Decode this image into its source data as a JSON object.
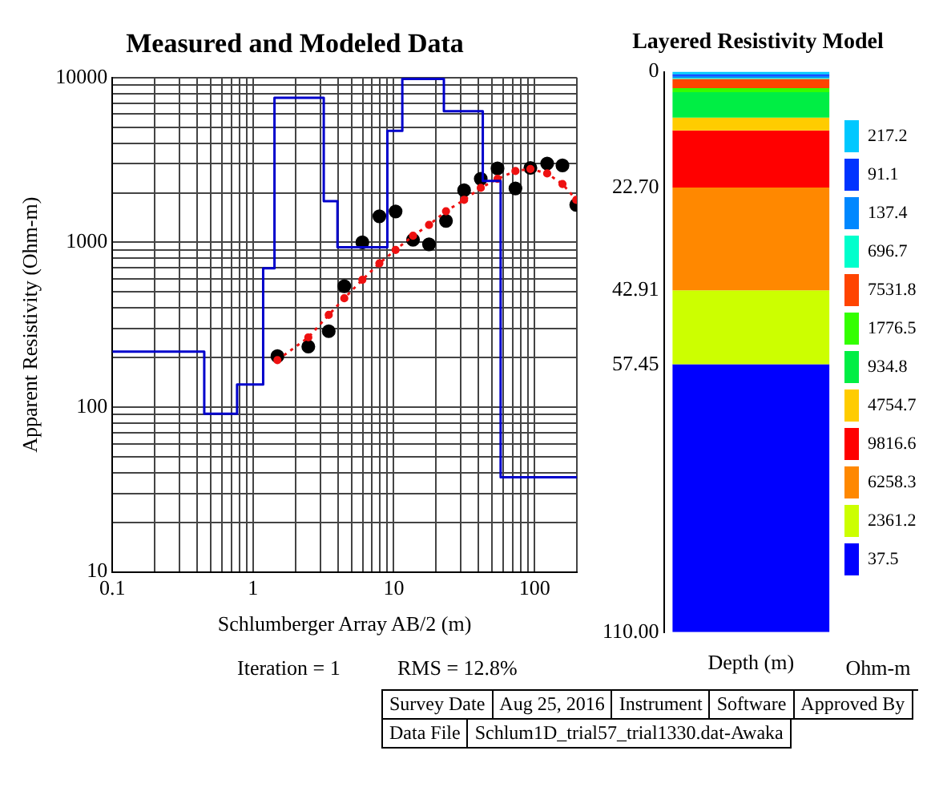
{
  "chart_data": [
    {
      "type": "scatter",
      "title": "Measured and Modeled Data",
      "xlabel": "Schlumberger Array AB/2 (m)",
      "ylabel": "Apparent Resistivity (Ohm-m)",
      "log": "xy",
      "grid": true,
      "xlim": [
        0.1,
        200
      ],
      "ylim": [
        10,
        10000
      ],
      "xticks": [
        {
          "value": 0.1,
          "label": "0.1"
        },
        {
          "value": 0.2,
          "label": null
        },
        {
          "value": 0.3,
          "label": null
        },
        {
          "value": 0.4,
          "label": null
        },
        {
          "value": 0.5,
          "label": null
        },
        {
          "value": 0.6,
          "label": null
        },
        {
          "value": 0.7,
          "label": null
        },
        {
          "value": 0.8,
          "label": null
        },
        {
          "value": 0.9,
          "label": null
        },
        1,
        {
          "value": 2,
          "label": null
        },
        {
          "value": 3,
          "label": null
        },
        {
          "value": 4,
          "label": null
        },
        {
          "value": 5,
          "label": null
        },
        {
          "value": 6,
          "label": null
        },
        {
          "value": 7,
          "label": null
        },
        {
          "value": 8,
          "label": null
        },
        {
          "value": 9,
          "label": null
        },
        10,
        {
          "value": 20,
          "label": null
        },
        {
          "value": 30,
          "label": null
        },
        {
          "value": 40,
          "label": null
        },
        {
          "value": 50,
          "label": null
        },
        {
          "value": 60,
          "label": null
        },
        {
          "value": 70,
          "label": null
        },
        {
          "value": 80,
          "label": null
        },
        {
          "value": 90,
          "label": null
        },
        100,
        {
          "value": 200,
          "label": null
        }
      ],
      "yticks": [
        10,
        {
          "value": 20,
          "label": null
        },
        {
          "value": 30,
          "label": null
        },
        {
          "value": 40,
          "label": null
        },
        {
          "value": 50,
          "label": null
        },
        {
          "value": 60,
          "label": null
        },
        {
          "value": 70,
          "label": null
        },
        {
          "value": 80,
          "label": null
        },
        {
          "value": 90,
          "label": null
        },
        100,
        {
          "value": 200,
          "label": null
        },
        {
          "value": 300,
          "label": null
        },
        {
          "value": 400,
          "label": null
        },
        {
          "value": 500,
          "label": null
        },
        {
          "value": 600,
          "label": null
        },
        {
          "value": 700,
          "label": null
        },
        {
          "value": 800,
          "label": null
        },
        {
          "value": 900,
          "label": null
        },
        1000,
        {
          "value": 2000,
          "label": null
        },
        {
          "value": 3000,
          "label": null
        },
        {
          "value": 4000,
          "label": null
        },
        {
          "value": 5000,
          "label": null
        },
        {
          "value": 6000,
          "label": null
        },
        {
          "value": 7000,
          "label": null
        },
        {
          "value": 8000,
          "label": null
        },
        {
          "value": 9000,
          "label": null
        },
        10000
      ],
      "series": [
        {
          "type": "step",
          "color": "#0000cc",
          "marker": "none",
          "x": [
            0.1,
            0.45,
            0.77,
            1.18,
            1.42,
            3.18,
            3.98,
            9.0,
            11.5,
            22.7,
            42.91,
            57.45,
            200
          ],
          "values": [
            217.2,
            91.1,
            137.4,
            696.7,
            7531.8,
            1776.5,
            934.8,
            4754.7,
            9816.6,
            6258.3,
            2361.2,
            37.5,
            37.5
          ]
        },
        {
          "type": "line",
          "color": "#ee1111",
          "marker": "circle",
          "line_style": "dotted",
          "x": [
            1.49,
            2.47,
            3.45,
            4.45,
            5.98,
            7.9,
            10.3,
            13.7,
            17.8,
            23.5,
            31.6,
            41.5,
            54.6,
            73.2,
            93.5,
            123,
            158,
            198
          ],
          "values": [
            193,
            265,
            363,
            458,
            593,
            746,
            900,
            1096,
            1277,
            1545,
            1810,
            2140,
            2430,
            2710,
            2790,
            2620,
            2260,
            1810
          ]
        },
        {
          "type": "scatter",
          "color": "#000000",
          "marker": "circle",
          "x": [
            1.49,
            2.47,
            3.45,
            4.45,
            5.98,
            7.9,
            10.3,
            13.7,
            17.8,
            23.5,
            31.6,
            41.5,
            54.6,
            73.2,
            93.5,
            123,
            158,
            198
          ],
          "values": [
            204,
            233,
            289,
            542,
            1000,
            1440,
            1540,
            1036,
            973,
            1350,
            2070,
            2430,
            2810,
            2125,
            2830,
            3010,
            2930,
            1690
          ]
        }
      ],
      "annotations": [
        "Iteration = 1",
        "RMS = 12.8%"
      ]
    },
    {
      "type": "bar",
      "title": "Layered Resistivity Model",
      "stacked": true,
      "categories": [
        null
      ],
      "xlabel": "Depth (m)",
      "legend": "right",
      "legend_title": "Ohm-m",
      "ylim": [
        110,
        0
      ],
      "yticks": [
        0,
        {
          "value": 22.7,
          "label": "22.70"
        },
        {
          "value": 42.91,
          "label": "42.91"
        },
        {
          "value": 57.45,
          "label": "57.45"
        },
        {
          "value": 110,
          "label": "110.00"
        }
      ],
      "series": [
        {
          "name": "217.2",
          "color": "#00c8ff",
          "values": [
            0.5
          ]
        },
        {
          "name": "91.1",
          "color": "#0033ff",
          "values": [
            0.3
          ]
        },
        {
          "name": "137.4",
          "color": "#0088ff",
          "values": [
            0.4
          ]
        },
        {
          "name": "696.7",
          "color": "#00ffcc",
          "values": [
            0.2
          ]
        },
        {
          "name": "7531.8",
          "color": "#ff4400",
          "values": [
            1.8
          ]
        },
        {
          "name": "1776.5",
          "color": "#33ff00",
          "values": [
            0.8
          ]
        },
        {
          "name": "934.8",
          "color": "#00ee44",
          "values": [
            5.0
          ]
        },
        {
          "name": "4754.7",
          "color": "#ffcc00",
          "values": [
            2.5
          ]
        },
        {
          "name": "9816.6",
          "color": "#ff0000",
          "values": [
            11.2
          ]
        },
        {
          "name": "6258.3",
          "color": "#ff8800",
          "values": [
            20.2
          ]
        },
        {
          "name": "2361.2",
          "color": "#ccff00",
          "values": [
            14.5
          ]
        },
        {
          "name": "37.5",
          "color": "#0000ff",
          "values": [
            52.6
          ]
        }
      ]
    },
    {
      "type": "other",
      "annotations": [
        "Survey Date",
        "Aug 25, 2016",
        "Instrument",
        "Software",
        "Approved By",
        "Data File",
        "Schlum1D_trial57_trial1330.dat-Awaka"
      ]
    }
  ]
}
